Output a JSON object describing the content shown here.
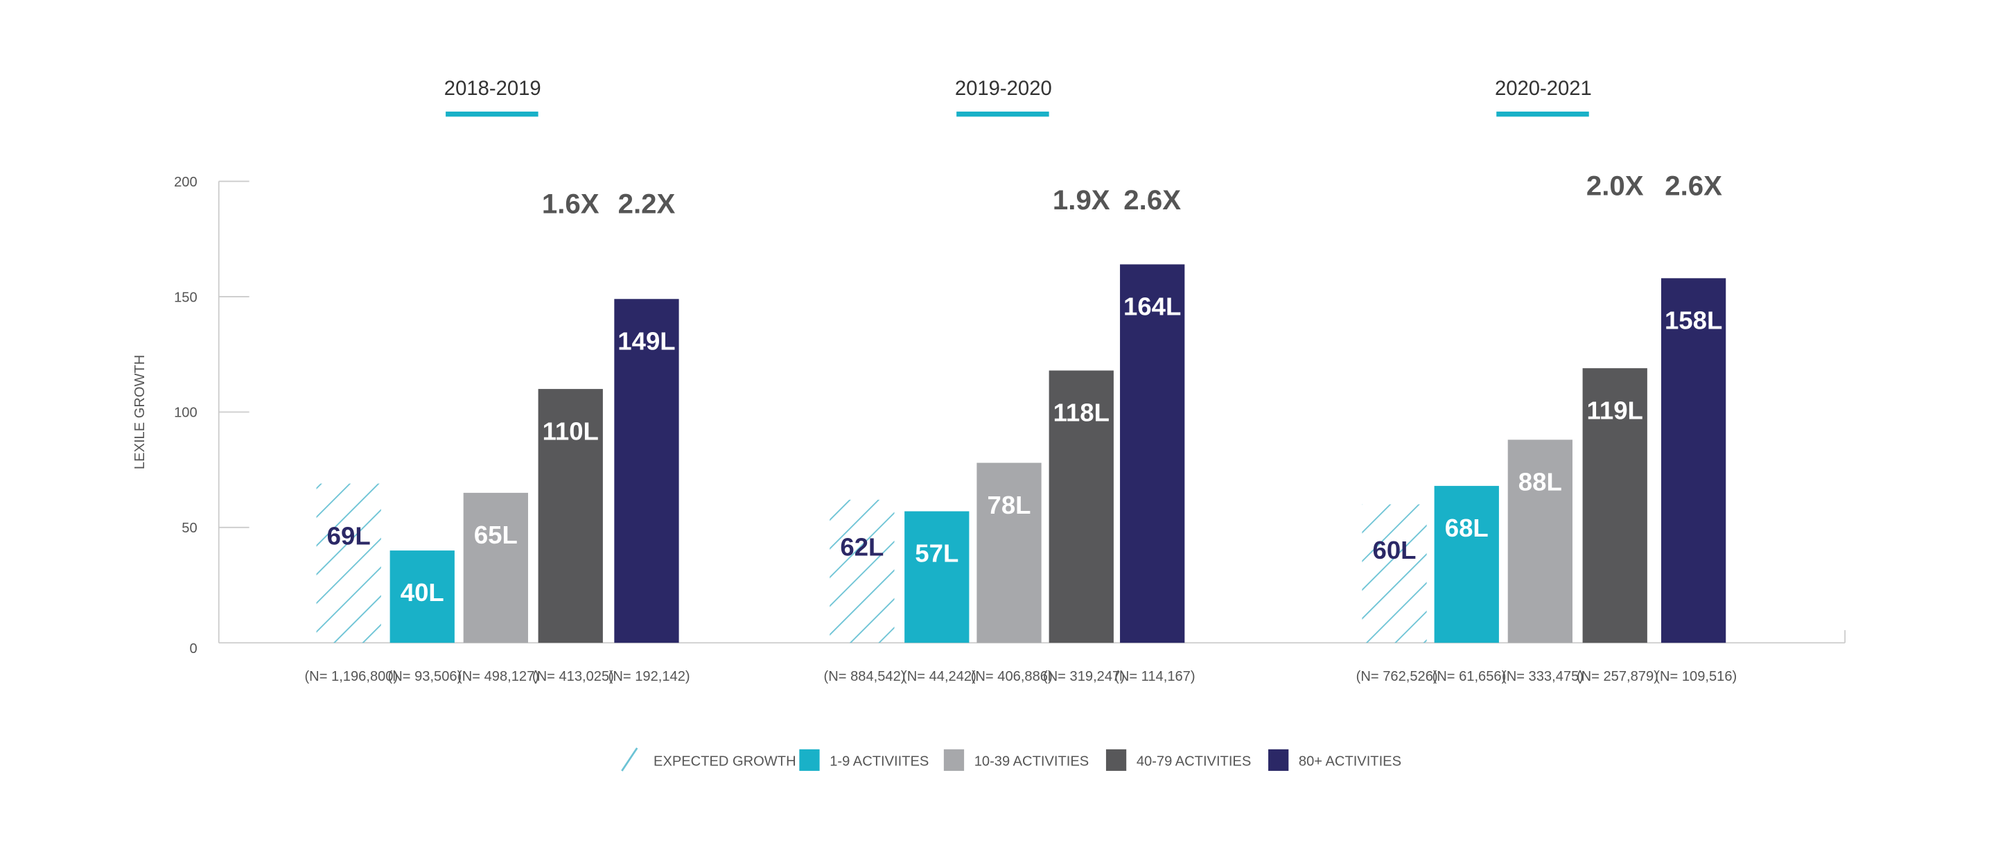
{
  "chart_data": {
    "type": "bar",
    "ylabel": "LEXILE GROWTH",
    "ylim": [
      0,
      200
    ],
    "yticks": [
      0,
      50,
      100,
      150,
      200
    ],
    "grid": false,
    "legend_placement": "bottom",
    "groups": [
      {
        "title": "2018-2019",
        "values": [
          69,
          40,
          65,
          110,
          149
        ],
        "labels": [
          "69L",
          "40L",
          "65L",
          "110L",
          "149L"
        ],
        "n": [
          "(N= 1,196,800)",
          "(N= 93,506)",
          "(N= 498,127)",
          "(N= 413,025)",
          "(N= 192,142)"
        ],
        "multipliers": [
          "1.6X",
          "2.2X"
        ]
      },
      {
        "title": "2019-2020",
        "values": [
          62,
          57,
          78,
          118,
          164
        ],
        "labels": [
          "62L",
          "57L",
          "78L",
          "118L",
          "164L"
        ],
        "n": [
          "(N= 884,542)",
          "(N= 44,242)",
          "(N= 406,886)",
          "(N= 319,247)",
          "(N= 114,167)"
        ],
        "multipliers": [
          "1.9X",
          "2.6X"
        ]
      },
      {
        "title": "2020-2021",
        "values": [
          60,
          68,
          88,
          119,
          158
        ],
        "labels": [
          "60L",
          "68L",
          "88L",
          "119L",
          "158L"
        ],
        "n": [
          "(N= 762,526)",
          "(N= 61,656)",
          "(N= 333,475)",
          "(N= 257,879)",
          "(N= 109,516)"
        ],
        "multipliers": [
          "2.0X",
          "2.6X"
        ]
      }
    ],
    "series": [
      {
        "name": "EXPECTED GROWTH",
        "color": "#6cc3d5",
        "pattern": "hatch"
      },
      {
        "name": "1-9 ACTIVIITES",
        "color": "#19b1c8"
      },
      {
        "name": "10-39 ACTIVITIES",
        "color": "#a7a8ab"
      },
      {
        "name": "40-79 ACTIVITIES",
        "color": "#58585a"
      },
      {
        "name": "80+ ACTIVITIES",
        "color": "#2b2866"
      }
    ],
    "accent_color": "#19b1c8",
    "expected_label_color": "#2b2866"
  }
}
